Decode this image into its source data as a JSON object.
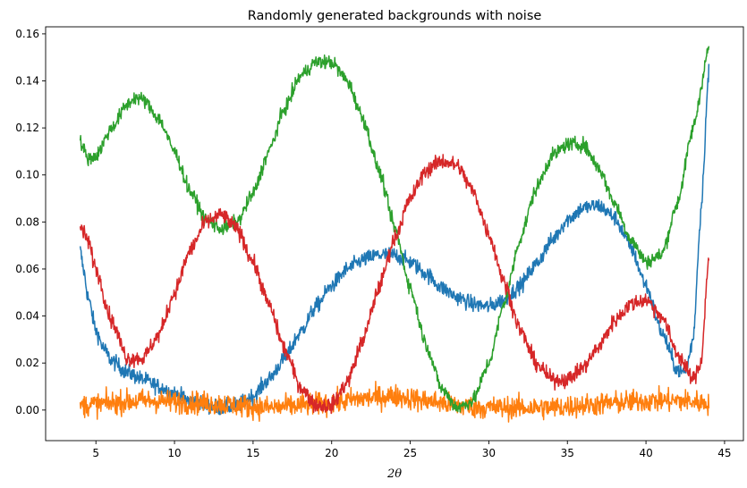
{
  "chart_data": {
    "type": "line",
    "title": "Randomly generated backgrounds with noise",
    "xlabel": "2θ",
    "ylabel": "",
    "xlim": [
      1.8,
      46.2
    ],
    "ylim": [
      -0.013,
      0.163
    ],
    "x_ticks": [
      5,
      10,
      15,
      20,
      25,
      30,
      35,
      40,
      45
    ],
    "y_ticks": [
      0.0,
      0.02,
      0.04,
      0.06,
      0.08,
      0.1,
      0.12,
      0.14,
      0.16
    ],
    "grid": false,
    "legend": "none",
    "series": [
      {
        "color": "#1f77b4",
        "noise": 0.0018,
        "x": [
          4.0,
          4.2,
          4.5,
          5.0,
          5.5,
          6.0,
          7.0,
          8.0,
          9.0,
          10.0,
          11.0,
          12.0,
          13.0,
          14.0,
          15.0,
          16.0,
          17.0,
          18.0,
          19.0,
          20.0,
          21.0,
          22.0,
          23.0,
          24.0,
          25.0,
          26.0,
          27.0,
          28.0,
          29.0,
          30.0,
          31.0,
          32.0,
          33.0,
          34.0,
          35.0,
          36.0,
          37.0,
          38.0,
          39.0,
          40.0,
          41.0,
          42.0,
          42.5,
          43.0,
          43.5,
          44.0
        ],
        "y": [
          0.068,
          0.06,
          0.048,
          0.034,
          0.026,
          0.021,
          0.016,
          0.013,
          0.01,
          0.007,
          0.004,
          0.002,
          0.001,
          0.002,
          0.006,
          0.013,
          0.022,
          0.033,
          0.044,
          0.053,
          0.06,
          0.064,
          0.066,
          0.066,
          0.063,
          0.058,
          0.052,
          0.048,
          0.045,
          0.044,
          0.047,
          0.053,
          0.062,
          0.072,
          0.081,
          0.086,
          0.087,
          0.082,
          0.07,
          0.053,
          0.033,
          0.017,
          0.016,
          0.03,
          0.085,
          0.144
        ]
      },
      {
        "color": "#ff7f0e",
        "noise": 0.0026,
        "x": [
          4.0,
          8.0,
          12.0,
          16.0,
          20.0,
          22.0,
          24.0,
          26.0,
          28.0,
          30.0,
          32.0,
          34.0,
          36.0,
          38.0,
          40.0,
          42.0,
          44.0
        ],
        "y": [
          0.002,
          0.004,
          0.003,
          0.001,
          0.003,
          0.005,
          0.006,
          0.004,
          0.002,
          0.001,
          0.001,
          0.001,
          0.002,
          0.003,
          0.004,
          0.004,
          0.003
        ]
      },
      {
        "color": "#2ca02c",
        "noise": 0.0016,
        "x": [
          4.0,
          4.5,
          5.0,
          6.0,
          7.0,
          7.5,
          8.0,
          9.0,
          10.0,
          11.0,
          12.0,
          13.0,
          14.0,
          15.0,
          16.0,
          17.0,
          18.0,
          19.0,
          20.0,
          21.0,
          22.0,
          23.0,
          24.0,
          25.0,
          26.0,
          27.0,
          28.0,
          29.0,
          30.0,
          31.0,
          32.0,
          33.0,
          34.0,
          35.0,
          36.0,
          37.0,
          38.0,
          39.0,
          40.0,
          41.0,
          42.0,
          43.0,
          44.0
        ],
        "y": [
          0.114,
          0.107,
          0.108,
          0.12,
          0.13,
          0.133,
          0.132,
          0.124,
          0.11,
          0.093,
          0.081,
          0.077,
          0.08,
          0.092,
          0.11,
          0.128,
          0.142,
          0.148,
          0.148,
          0.14,
          0.124,
          0.102,
          0.078,
          0.052,
          0.028,
          0.009,
          0.001,
          0.004,
          0.02,
          0.046,
          0.073,
          0.094,
          0.108,
          0.113,
          0.113,
          0.103,
          0.088,
          0.073,
          0.063,
          0.066,
          0.088,
          0.12,
          0.154
        ]
      },
      {
        "color": "#d62728",
        "noise": 0.0018,
        "x": [
          4.0,
          4.5,
          5.0,
          6.0,
          7.0,
          8.0,
          9.0,
          10.0,
          11.0,
          12.0,
          13.0,
          14.0,
          15.0,
          16.0,
          17.0,
          18.0,
          19.0,
          20.0,
          21.0,
          22.0,
          23.0,
          24.0,
          25.0,
          26.0,
          27.0,
          28.0,
          29.0,
          30.0,
          31.0,
          32.0,
          33.0,
          34.0,
          35.0,
          36.0,
          37.0,
          38.0,
          39.0,
          40.0,
          41.0,
          42.0,
          43.0,
          43.5,
          44.0
        ],
        "y": [
          0.078,
          0.072,
          0.06,
          0.038,
          0.022,
          0.022,
          0.032,
          0.05,
          0.068,
          0.08,
          0.083,
          0.077,
          0.063,
          0.045,
          0.026,
          0.01,
          0.002,
          0.002,
          0.012,
          0.03,
          0.052,
          0.073,
          0.09,
          0.102,
          0.106,
          0.104,
          0.093,
          0.075,
          0.054,
          0.034,
          0.02,
          0.013,
          0.013,
          0.018,
          0.027,
          0.038,
          0.045,
          0.047,
          0.04,
          0.024,
          0.013,
          0.02,
          0.065
        ]
      }
    ]
  }
}
